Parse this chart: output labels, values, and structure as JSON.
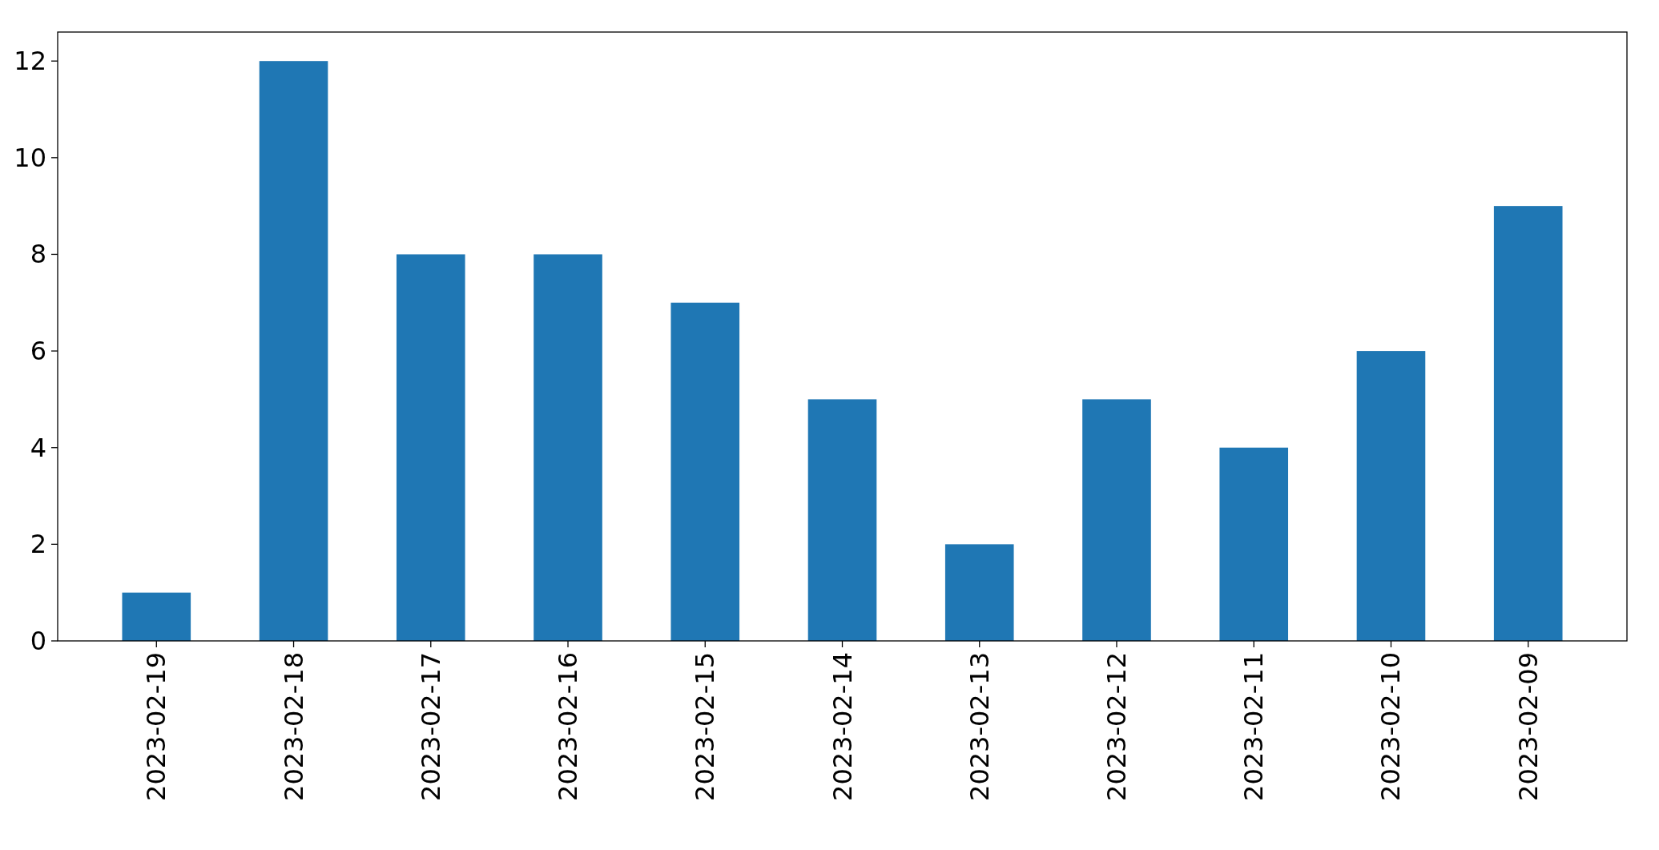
{
  "chart_data": {
    "type": "bar",
    "categories": [
      "2023-02-19",
      "2023-02-18",
      "2023-02-17",
      "2023-02-16",
      "2023-02-15",
      "2023-02-14",
      "2023-02-13",
      "2023-02-12",
      "2023-02-11",
      "2023-02-10",
      "2023-02-09"
    ],
    "values": [
      1,
      12,
      8,
      8,
      7,
      5,
      2,
      5,
      4,
      6,
      9
    ],
    "color": "#1f77b4",
    "ylim": [
      0,
      12.6
    ],
    "yticks": [
      0,
      2,
      4,
      6,
      8,
      10,
      12
    ],
    "grid": false
  }
}
